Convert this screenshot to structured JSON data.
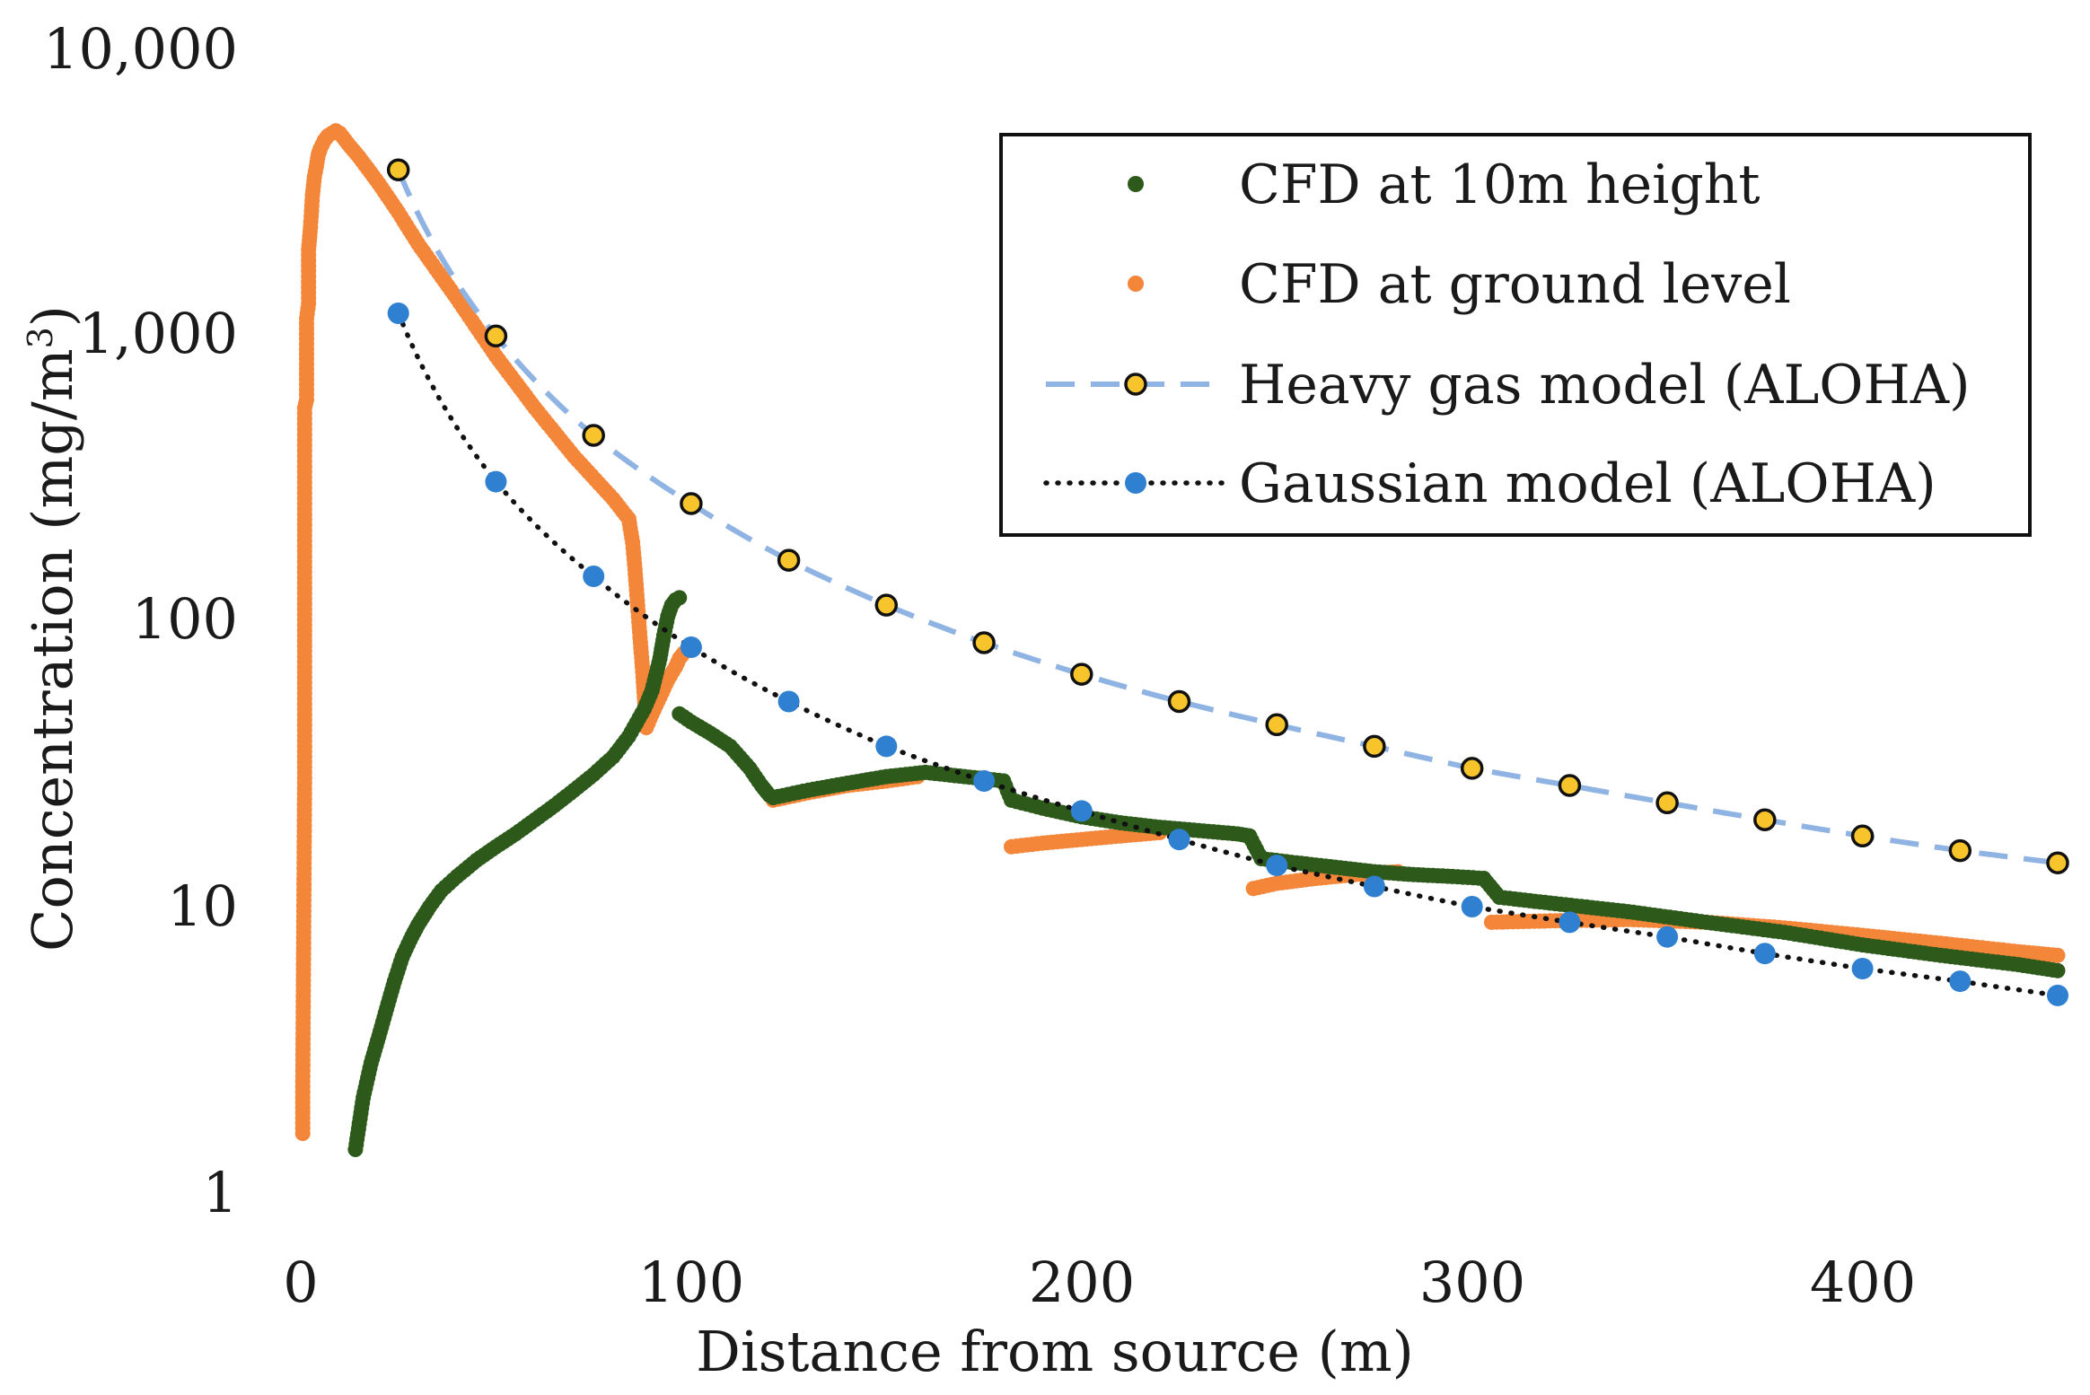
{
  "chart_data": {
    "type": "scatter",
    "title": "",
    "xlabel": "Distance from source (m)",
    "ylabel": "Concentration (mg/m³)",
    "ylabel_main": "Concentration (mg/m",
    "ylabel_sup": "3",
    "ylabel_end": ")",
    "xscale": "linear",
    "yscale": "log",
    "xlim": [
      0,
      450
    ],
    "ylim": [
      1,
      10000
    ],
    "x_ticks": [
      0,
      100,
      200,
      300,
      400
    ],
    "x_tick_labels": [
      "0",
      "100",
      "200",
      "300",
      "400"
    ],
    "y_ticks": [
      1,
      10,
      100,
      1000,
      10000
    ],
    "y_tick_labels": [
      "1",
      "10",
      "100",
      "1,000",
      "10,000"
    ],
    "grid": false,
    "legend_position": "top-right",
    "colors": {
      "cfd_10m": "#2d5a1b",
      "cfd_ground": "#f4863a",
      "heavy_line": "#8fb4e3",
      "heavy_marker_fill": "#f7c52b",
      "heavy_marker_edge": "#111111",
      "gauss_line": "#111111",
      "gauss_marker": "#2f80d1"
    },
    "series": [
      {
        "name": "CFD at 10m height",
        "style": "dense-markers",
        "segments": [
          {
            "x": [
              14,
              16,
              18,
              20,
              22,
              24,
              26,
              28,
              30,
              33,
              36,
              40,
              45,
              50,
              55,
              60,
              65,
              70,
              75,
              80,
              84,
              88,
              90,
              92,
              93,
              94,
              95,
              96,
              97
            ],
            "y": [
              1.45,
              2.2,
              2.9,
              3.6,
              4.5,
              5.6,
              6.8,
              7.8,
              8.8,
              10.2,
              11.6,
              13.0,
              14.8,
              16.5,
              18.3,
              20.5,
              23.0,
              26.0,
              29.5,
              34.0,
              40.0,
              50.0,
              58.0,
              75.0,
              90.0,
              105.0,
              115.0,
              120.0,
              122.0
            ]
          },
          {
            "x": [
              97,
              100,
              105,
              110,
              115,
              118,
              120,
              121
            ],
            "y": [
              48.0,
              45.0,
              41.0,
              37.0,
              31.0,
              27.0,
              25.0,
              24.5
            ]
          },
          {
            "x": [
              121,
              130,
              140,
              150,
              160,
              170,
              175,
              180
            ],
            "y": [
              24.5,
              26.0,
              27.5,
              29.0,
              30.0,
              29.0,
              28.5,
              28.0
            ]
          },
          {
            "x": [
              180,
              182,
              190,
              200,
              210,
              220,
              230,
              240,
              243
            ],
            "y": [
              28.0,
              24.0,
              22.5,
              21.0,
              20.0,
              19.3,
              18.8,
              18.3,
              18.0
            ]
          },
          {
            "x": [
              243,
              246,
              255,
              265,
              275,
              285,
              295,
              303
            ],
            "y": [
              18.0,
              15.0,
              14.5,
              14.0,
              13.5,
              13.2,
              13.0,
              12.8
            ]
          },
          {
            "x": [
              303,
              307,
              320,
              340,
              360,
              380,
              400,
              420,
              440,
              450
            ],
            "y": [
              12.8,
              11.0,
              10.5,
              9.8,
              9.0,
              8.3,
              7.5,
              6.9,
              6.4,
              6.1
            ]
          }
        ]
      },
      {
        "name": "CFD at ground level",
        "style": "dense-markers",
        "segments": [
          {
            "x": [
              0.5,
              0.5,
              1,
              1,
              1,
              1.5,
              1.5,
              2,
              2,
              2.5,
              3,
              3.5,
              4,
              4.5,
              5,
              6,
              7,
              8,
              9,
              10,
              12,
              15,
              20,
              25,
              30,
              40,
              50,
              60,
              70,
              80,
              84
            ],
            "y": [
              1.65,
              2.3,
              30.0,
              170.0,
              560.0,
              600.0,
              1150.0,
              1300.0,
              2000.0,
              2400.0,
              3100.0,
              3600.0,
              3900.0,
              4300.0,
              4500.0,
              4800.0,
              5000.0,
              5100.0,
              5200.0,
              5100.0,
              4700.0,
              4200.0,
              3400.0,
              2700.0,
              2100.0,
              1350.0,
              850.0,
              560.0,
              380.0,
              270.0,
              230.0
            ]
          },
          {
            "x": [
              84,
              85,
              85.5,
              86,
              86.5,
              87,
              87.5,
              88,
              88.5
            ],
            "y": [
              230.0,
              190.0,
              160.0,
              130.0,
              105.0,
              85.0,
              70.0,
              55.0,
              45.0
            ]
          },
          {
            "x": [
              88.5,
              90,
              92,
              94,
              96,
              97,
              98
            ],
            "y": [
              43.0,
              48.0,
              55.0,
              63.0,
              70.0,
              75.0,
              78.0
            ]
          },
          {
            "x": [
              121,
              130,
              140,
              150,
              158
            ],
            "y": [
              24.0,
              25.5,
              27.0,
              28.0,
              29.0
            ]
          },
          {
            "x": [
              182,
              190,
              200,
              210,
              220
            ],
            "y": [
              16.5,
              17.0,
              17.5,
              18.0,
              18.5
            ]
          },
          {
            "x": [
              244,
              250,
              260,
              270,
              281
            ],
            "y": [
              11.8,
              12.3,
              12.8,
              13.2,
              13.5
            ]
          },
          {
            "x": [
              305,
              320,
              340,
              360,
              380,
              400,
              420,
              440,
              450
            ],
            "y": [
              9.0,
              9.1,
              9.2,
              9.0,
              8.6,
              8.1,
              7.6,
              7.1,
              6.9
            ]
          }
        ]
      },
      {
        "name": "Heavy gas model (ALOHA)",
        "style": "dashed-line-with-markers",
        "x": [
          25,
          50,
          75,
          100,
          125,
          150,
          175,
          200,
          225,
          250,
          275,
          300,
          325,
          350,
          375,
          400,
          425,
          450
        ],
        "y": [
          3800,
          1000,
          450,
          260,
          165,
          115,
          85,
          66,
          53,
          44,
          37,
          31,
          27,
          23.5,
          20.5,
          18.0,
          16.0,
          14.5
        ]
      },
      {
        "name": "Gaussian model (ALOHA)",
        "style": "dotted-line-with-markers",
        "x": [
          25,
          50,
          75,
          100,
          125,
          150,
          175,
          200,
          225,
          250,
          275,
          300,
          325,
          350,
          375,
          400,
          425,
          450
        ],
        "y": [
          1200,
          310,
          145,
          82,
          53,
          37,
          28,
          22,
          17.5,
          14.2,
          12.0,
          10.2,
          9.0,
          8.0,
          7.0,
          6.2,
          5.6,
          5.0
        ]
      }
    ]
  }
}
